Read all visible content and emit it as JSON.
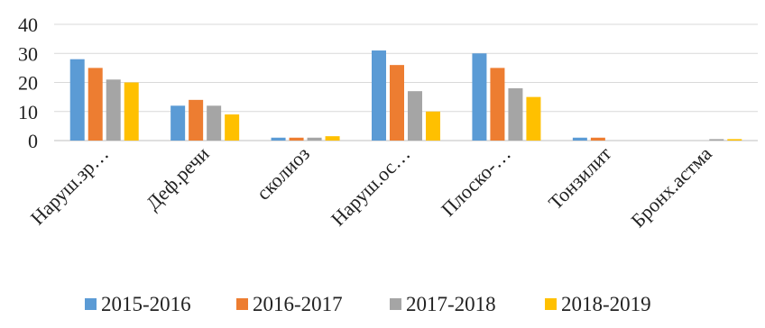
{
  "chart_data": {
    "type": "bar",
    "title": "",
    "xlabel": "",
    "ylabel": "",
    "ylim": [
      0,
      40
    ],
    "yticks": [
      0,
      10,
      20,
      30,
      40
    ],
    "grid": true,
    "legend_position": "bottom",
    "categories": [
      "Наруш.зр…",
      "Деф.речи",
      "сколиоз",
      "Наруш.ос…",
      "Плоско-…",
      "Тонзилит",
      "Бронх.астма"
    ],
    "series": [
      {
        "name": "2015-2016",
        "color": "#5B9BD5",
        "values": [
          28,
          12,
          1,
          31,
          30,
          1,
          0
        ]
      },
      {
        "name": "2016-2017",
        "color": "#ED7D31",
        "values": [
          25,
          14,
          1,
          26,
          25,
          1,
          0
        ]
      },
      {
        "name": "2017-2018",
        "color": "#A5A5A5",
        "values": [
          21,
          12,
          1,
          17,
          18,
          0,
          0.5
        ]
      },
      {
        "name": "2018-2019",
        "color": "#FFC000",
        "values": [
          20,
          9,
          1.5,
          10,
          15,
          0,
          0.5
        ]
      }
    ]
  }
}
